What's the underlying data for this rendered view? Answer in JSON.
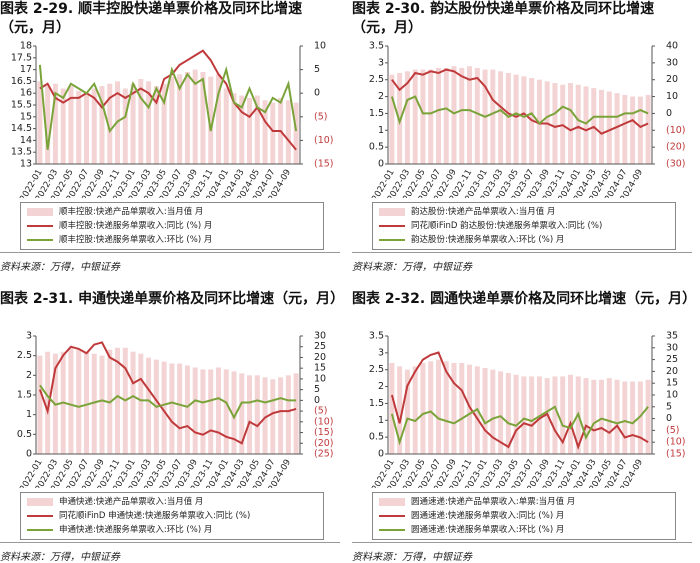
{
  "chart_data": [
    {
      "type": "combo",
      "title": "图表 2-29. 顺丰控股快递单票价格及同环比增速（元，月）",
      "source": "资料来源：万得，中银证券",
      "categories": [
        "2022-01",
        null,
        "2022-03",
        null,
        "2022-05",
        null,
        "2022-07",
        null,
        "2022-09",
        null,
        "2022-11",
        null,
        "2023-01",
        null,
        "2023-03",
        null,
        "2023-05",
        null,
        "2023-07",
        null,
        "2023-09",
        null,
        "2023-11",
        null,
        "2024-01",
        null,
        "2024-03",
        null,
        "2024-05",
        null,
        "2024-07",
        null,
        "2024-09",
        null
      ],
      "ylim": [
        13,
        18
      ],
      "yticks": [
        13,
        13.5,
        14,
        14.5,
        15,
        15.5,
        16,
        16.5,
        17,
        17.5,
        18
      ],
      "y2lim": [
        -15,
        10
      ],
      "y2ticks": [
        {
          "value": -15,
          "label": "(15)"
        },
        {
          "value": -10,
          "label": "(10)"
        },
        {
          "value": -5,
          "label": "(5)"
        },
        0,
        5,
        10
      ],
      "series": [
        {
          "name": "顺丰控股:快递产品单票收入:当月值 月",
          "type": "bar",
          "color": "#f3d3d3",
          "values": [
            16.5,
            16.3,
            16.4,
            16.2,
            16.3,
            16.1,
            16.0,
            16.2,
            16.3,
            16.4,
            16.5,
            16.2,
            16.4,
            16.6,
            16.5,
            16.3,
            16.4,
            16.7,
            16.8,
            16.9,
            17.0,
            16.9,
            16.7,
            16.8,
            16.2,
            16.0,
            15.9,
            15.8,
            15.9,
            15.7,
            15.6,
            15.8,
            15.7,
            15.6
          ]
        },
        {
          "name": "顺丰控股:快递服务单票收入:同比 (%) 月",
          "type": "line",
          "axis": "y2",
          "color": "#c0393b",
          "values": [
            1,
            2,
            -1,
            -2,
            -1,
            -1,
            0,
            -1,
            -3,
            -1,
            0,
            -1,
            0,
            1,
            0,
            -2,
            3,
            4,
            6,
            7,
            8,
            9,
            7,
            4,
            2,
            -2,
            -4,
            -5,
            -3,
            -6,
            -8,
            -8,
            -10,
            -12
          ]
        },
        {
          "name": "顺丰控股:快递服务单票收入:环比 (%) 月",
          "type": "line",
          "axis": "y2",
          "color": "#7aa33a",
          "values": [
            6,
            -12,
            0,
            -1,
            2,
            1,
            0,
            2,
            -2,
            -8,
            -6,
            -5,
            2,
            -1,
            -3,
            1,
            -2,
            5,
            1,
            4,
            2,
            3,
            -8,
            0,
            5,
            -2,
            -3,
            1,
            -3,
            -4,
            -1,
            -2,
            2,
            -8
          ]
        }
      ]
    },
    {
      "type": "combo",
      "title": "图表 2-30. 韵达股份快递单票价格及同环比增速（元，月）",
      "source": "资料来源：万得，中银证券",
      "categories": [
        "2022-01",
        null,
        "2022-03",
        null,
        "2022-05",
        null,
        "2022-07",
        null,
        "2022-09",
        null,
        "2022-11",
        null,
        "2023-01",
        null,
        "2023-03",
        null,
        "2023-05",
        null,
        "2023-07",
        null,
        "2023-09",
        null,
        "2023-11",
        null,
        "2024-01",
        null,
        "2024-03",
        null,
        "2024-05",
        null,
        "2024-07",
        null,
        "2024-09",
        null
      ],
      "ylim": [
        0,
        3.5
      ],
      "yticks": [
        0,
        0.5,
        1,
        1.5,
        2,
        2.5,
        3,
        3.5
      ],
      "y2lim": [
        -30,
        40
      ],
      "y2ticks": [
        {
          "value": -30,
          "label": "(30)"
        },
        {
          "value": -20,
          "label": "(20)"
        },
        {
          "value": -10,
          "label": "(10)"
        },
        0,
        10,
        20,
        30,
        40
      ],
      "series": [
        {
          "name": "韵达股份:快递产品单票收入:当月值 月",
          "type": "bar",
          "color": "#f3d3d3",
          "values": [
            2.65,
            2.7,
            2.75,
            2.8,
            2.8,
            2.8,
            2.85,
            2.85,
            2.9,
            2.85,
            2.9,
            2.85,
            2.8,
            2.8,
            2.75,
            2.7,
            2.65,
            2.6,
            2.55,
            2.5,
            2.45,
            2.4,
            2.35,
            2.4,
            2.35,
            2.3,
            2.25,
            2.2,
            2.15,
            2.1,
            2.05,
            2.0,
            2.0,
            2.05
          ]
        },
        {
          "name": "同花顺iFinD 韵达股份:快递服务单票收入:同比 (%)",
          "type": "line",
          "axis": "y2",
          "color": "#c0393b",
          "values": [
            20,
            14,
            18,
            24,
            23,
            25,
            24,
            26,
            25,
            22,
            20,
            21,
            16,
            8,
            4,
            0,
            -2,
            0,
            -4,
            -6,
            -6,
            -8,
            -7,
            -10,
            -8,
            -10,
            -8,
            -12,
            -10,
            -8,
            -6,
            -4,
            -8,
            -6
          ]
        },
        {
          "name": "韵达股份:快递服务单票收入:环比 (%) 月",
          "type": "line",
          "axis": "y2",
          "color": "#7aa33a",
          "values": [
            10,
            -5,
            8,
            10,
            0,
            0,
            2,
            3,
            0,
            2,
            2,
            0,
            -2,
            0,
            2,
            -2,
            0,
            -2,
            0,
            -6,
            -2,
            0,
            4,
            2,
            -4,
            -6,
            -2,
            -2,
            -2,
            -2,
            0,
            0,
            2,
            0
          ]
        }
      ]
    },
    {
      "type": "combo",
      "title": "图表 2-31. 申通快递单票价格及同环比增速（元，月）",
      "source": "资料来源：万得，中银证券",
      "categories": [
        "2022-01",
        null,
        "2022-03",
        null,
        "2022-05",
        null,
        "2022-07",
        null,
        "2022-09",
        null,
        "2022-11",
        null,
        "2023-01",
        null,
        "2023-03",
        null,
        "2023-05",
        null,
        "2023-07",
        null,
        "2023-09",
        null,
        "2023-11",
        null,
        "2024-01",
        null,
        "2024-03",
        null,
        "2024-05",
        null,
        "2024-07",
        null,
        "2024-09",
        null
      ],
      "ylim": [
        0,
        3
      ],
      "yticks": [
        0,
        0.5,
        1,
        1.5,
        2,
        2.5,
        3
      ],
      "y2lim": [
        -25,
        30
      ],
      "y2ticks": [
        {
          "value": -25,
          "label": "(25)"
        },
        {
          "value": -20,
          "label": "(20)"
        },
        {
          "value": -15,
          "label": "(15)"
        },
        {
          "value": -10,
          "label": "(10)"
        },
        {
          "value": -5,
          "label": "(5)"
        },
        0,
        5,
        10,
        15,
        20,
        25,
        30
      ],
      "series": [
        {
          "name": "申通快递:快递产品单票收入:当月值 月",
          "type": "bar",
          "color": "#f3d3d3",
          "values": [
            2.5,
            2.6,
            2.55,
            2.6,
            2.7,
            2.65,
            2.6,
            2.55,
            2.5,
            2.65,
            2.7,
            2.7,
            2.6,
            2.55,
            2.45,
            2.4,
            2.35,
            2.3,
            2.3,
            2.25,
            2.2,
            2.15,
            2.15,
            2.2,
            2.15,
            2.1,
            2.05,
            2.0,
            2.0,
            1.95,
            1.9,
            1.95,
            2.0,
            2.05
          ]
        },
        {
          "name": "同花顺iFinD 申通快递:快递服务单票收入:同比 (%)",
          "type": "line",
          "axis": "y2",
          "color": "#c0393b",
          "values": [
            5,
            -5,
            15,
            21,
            25,
            24,
            22,
            26,
            27,
            20,
            18,
            15,
            8,
            10,
            5,
            0,
            -5,
            -10,
            -13,
            -12,
            -15,
            -16,
            -14,
            -15,
            -17,
            -18,
            -20,
            -10,
            -12,
            -8,
            -6,
            -5,
            -5,
            -4
          ]
        },
        {
          "name": "申通快递:快递服务单票收入:环比 (%) 月",
          "type": "line",
          "axis": "y2",
          "color": "#7aa33a",
          "values": [
            7,
            2,
            -2,
            -1,
            -2,
            -3,
            -2,
            -1,
            0,
            -1,
            2,
            0,
            2,
            0,
            0,
            -3,
            -2,
            -1,
            -2,
            -3,
            0,
            -1,
            0,
            1,
            -1,
            -8,
            -1,
            -1,
            0,
            -1,
            0,
            1,
            0,
            0
          ]
        }
      ]
    },
    {
      "type": "combo",
      "title": "图表 2-32. 圆通快递单票价格及同环比增速（元，月）",
      "source": "资料来源：万得，中银证券",
      "categories": [
        "2022-01",
        null,
        "2022-03",
        null,
        "2022-05",
        null,
        "2022-07",
        null,
        "2022-09",
        null,
        "2022-11",
        null,
        "2023-01",
        null,
        "2023-03",
        null,
        "2023-05",
        null,
        "2023-07",
        null,
        "2023-09",
        null,
        "2023-11",
        null,
        "2024-01",
        null,
        "2024-03",
        null,
        "2024-05",
        null,
        "2024-07",
        null,
        "2024-09",
        null
      ],
      "ylim": [
        0,
        3.5
      ],
      "yticks": [
        0,
        0.5,
        1,
        1.5,
        2,
        2.5,
        3,
        3.5
      ],
      "y2lim": [
        -15,
        35
      ],
      "y2ticks": [
        {
          "value": -15,
          "label": "(15)"
        },
        {
          "value": -10,
          "label": "(10)"
        },
        {
          "value": -5,
          "label": "(5)"
        },
        0,
        5,
        10,
        15,
        20,
        25,
        30,
        35
      ],
      "series": [
        {
          "name": "圆通速递:快递产品单票收入:单票:当月值 月",
          "type": "bar",
          "color": "#f3d3d3",
          "values": [
            2.7,
            2.6,
            2.5,
            2.6,
            2.7,
            2.75,
            2.8,
            2.75,
            2.7,
            2.7,
            2.65,
            2.6,
            2.55,
            2.5,
            2.45,
            2.4,
            2.35,
            2.3,
            2.3,
            2.3,
            2.25,
            2.3,
            2.3,
            2.35,
            2.3,
            2.25,
            2.2,
            2.2,
            2.25,
            2.2,
            2.15,
            2.15,
            2.15,
            2.2
          ]
        },
        {
          "name": "圆通速递:快递服务单票收入:同比 (%) 月",
          "type": "line",
          "axis": "y2",
          "color": "#c0393b",
          "values": [
            10,
            -2,
            14,
            20,
            25,
            27,
            28,
            20,
            15,
            12,
            5,
            0,
            -5,
            -8,
            -10,
            -12,
            -5,
            -2,
            -3,
            0,
            2,
            -5,
            -10,
            -2,
            -12,
            -3,
            -5,
            -4,
            -6,
            -3,
            -8,
            -7,
            -8,
            -10
          ]
        },
        {
          "name": "圆通速递:快递服务单票收入:环比 (%) 月",
          "type": "line",
          "axis": "y2",
          "color": "#7aa33a",
          "values": [
            2,
            -10,
            0,
            -1,
            2,
            3,
            0,
            -1,
            -2,
            0,
            2,
            4,
            -2,
            0,
            1,
            -2,
            -3,
            0,
            -1,
            1,
            3,
            5,
            -3,
            -4,
            2,
            -8,
            -2,
            0,
            -1,
            -2,
            -1,
            -2,
            1,
            5
          ]
        }
      ]
    }
  ]
}
